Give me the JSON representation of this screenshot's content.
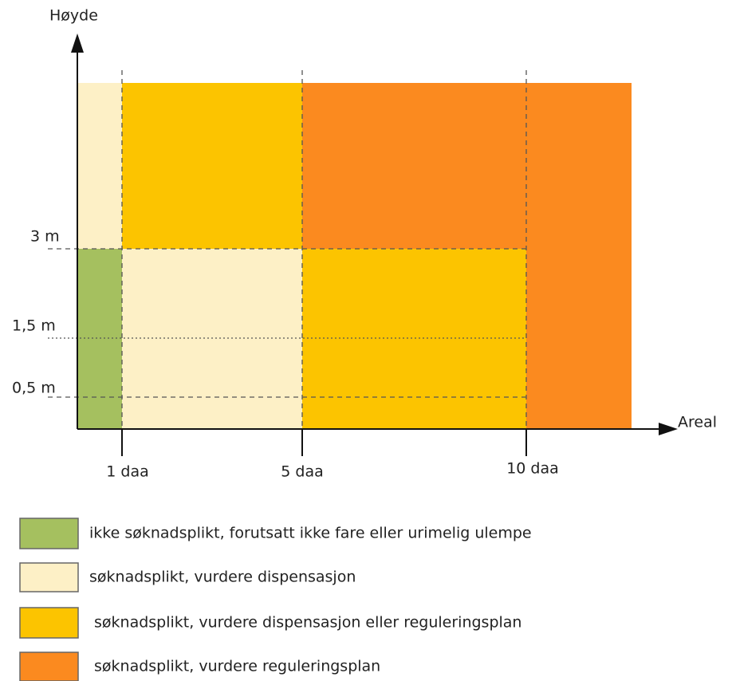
{
  "y_axis": {
    "label": "Høyde",
    "ticks": [
      "3 m",
      "1,5 m",
      "0,5 m"
    ]
  },
  "x_axis": {
    "label": "Areal",
    "ticks": [
      "1 daa",
      "5 daa",
      "10 daa"
    ]
  },
  "legend": [
    "ikke søknadsplikt, forutsatt ikke fare eller urimelig ulempe",
    "søknadsplikt, vurdere dispensasjon",
    "søknadsplikt, vurdere dispensasjon eller reguleringsplan",
    "søknadsplikt, vurdere reguleringsplan"
  ]
}
